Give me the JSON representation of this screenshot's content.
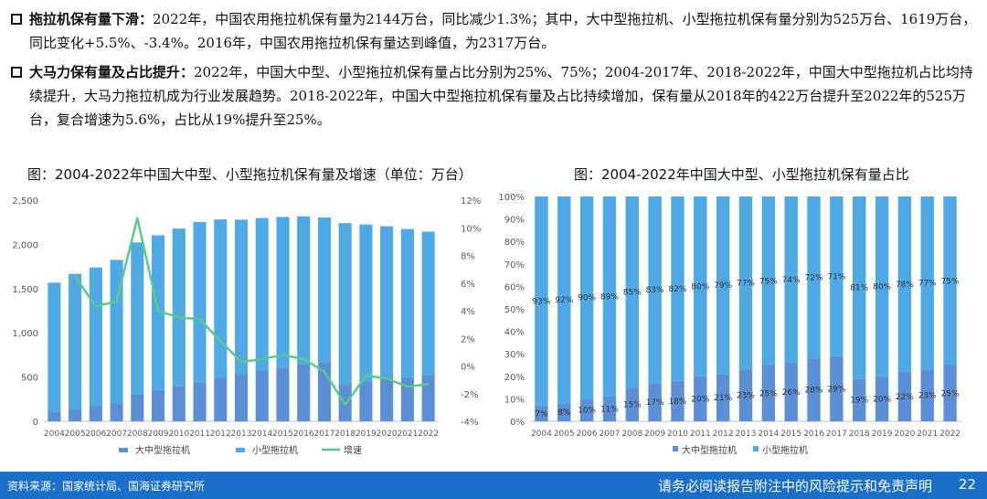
{
  "bullets": [
    {
      "head": "拖拉机保有量下滑：",
      "body": "2022年，中国农用拖拉机保有量为2144万台，同比减少1.3%；其中，大中型拖拉机、小型拖拉机保有量分别为525万台、1619万台，同比变化+5.5%、-3.4%。2016年，中国农用拖拉机保有量达到峰值，为2317万台。"
    },
    {
      "head": "大马力保有量及占比提升：",
      "body": "2022年，中国大中型、小型拖拉机保有量占比分别为25%、75%；2004-2017年、2018-2022年，中国大中型拖拉机占比均持续提升，大马力拖拉机成为行业发展趋势。2018-2022年，中国大中型拖拉机保有量及占比持续增加，保有量从2018年的422万台提升至2022年的525万台，复合增速为5.6%，占比从19%提升至25%。"
    }
  ],
  "colors": {
    "large": "#5b8fd6",
    "small": "#4ea9e4",
    "growth": "#5bc98a",
    "footer": "#1a6fc8"
  },
  "chart_data": [
    {
      "type": "bar",
      "title": "图：2004-2022年中国大中型、小型拖拉机保有量及增速（单位：万台）",
      "stacked": true,
      "categories": [
        "2004",
        "2005",
        "2006",
        "2007",
        "2008",
        "2009",
        "2010",
        "2011",
        "2012",
        "2013",
        "2014",
        "2015",
        "2016",
        "2017",
        "2018",
        "2019",
        "2020",
        "2021",
        "2022"
      ],
      "series": [
        {
          "name": "大中型拖拉机",
          "values": [
            112,
            140,
            171,
            206,
            300,
            352,
            392,
            441,
            485,
            527,
            568,
            607,
            645,
            670,
            422,
            444,
            477,
            498,
            525
          ]
        },
        {
          "name": "小型拖拉机",
          "values": [
            1455,
            1527,
            1568,
            1619,
            1722,
            1751,
            1786,
            1811,
            1797,
            1752,
            1730,
            1703,
            1672,
            1634,
            1818,
            1780,
            1728,
            1676,
            1619
          ]
        },
        {
          "name": "增速",
          "axis": "right",
          "type": "line",
          "values": [
            null,
            6.5,
            4.3,
            4.7,
            10.7,
            4.0,
            3.5,
            3.4,
            1.8,
            0.3,
            0.5,
            0.8,
            0.5,
            -0.4,
            -2.8,
            -0.7,
            -0.9,
            -1.5,
            -1.3
          ]
        }
      ],
      "ylim": [
        0,
        2500
      ],
      "yticks": [
        "0",
        "500",
        "1,000",
        "1,500",
        "2,000",
        "2,500"
      ],
      "y2lim": [
        -4,
        12
      ],
      "y2ticks": [
        "-4%",
        "-2%",
        "0%",
        "2%",
        "4%",
        "6%",
        "8%",
        "10%",
        "12%"
      ],
      "legend": "bottom"
    },
    {
      "type": "bar",
      "title": "图：2004-2022年中国大中型、小型拖拉机保有量占比",
      "stacked": true,
      "percent": true,
      "categories": [
        "2004",
        "2005",
        "2006",
        "2007",
        "2008",
        "2009",
        "2010",
        "2011",
        "2012",
        "2013",
        "2014",
        "2015",
        "2016",
        "2017",
        "2018",
        "2019",
        "2020",
        "2021",
        "2022"
      ],
      "series": [
        {
          "name": "大中型拖拉机",
          "values": [
            7,
            8,
            10,
            11,
            15,
            17,
            18,
            20,
            21,
            23,
            25,
            26,
            28,
            29,
            19,
            20,
            22,
            23,
            25
          ]
        },
        {
          "name": "小型拖拉机",
          "values": [
            93,
            92,
            90,
            89,
            85,
            83,
            82,
            80,
            79,
            77,
            75,
            74,
            72,
            71,
            81,
            80,
            78,
            77,
            75
          ]
        }
      ],
      "ylim": [
        0,
        100
      ],
      "yticks": [
        "0%",
        "10%",
        "20%",
        "30%",
        "40%",
        "50%",
        "60%",
        "70%",
        "80%",
        "90%",
        "100%"
      ],
      "legend": "bottom"
    }
  ],
  "footer": {
    "source": "资料来源：国家统计局、国海证券研究所",
    "disclaimer": "请务必阅读报告附注中的风险提示和免责声明",
    "page": "22"
  }
}
